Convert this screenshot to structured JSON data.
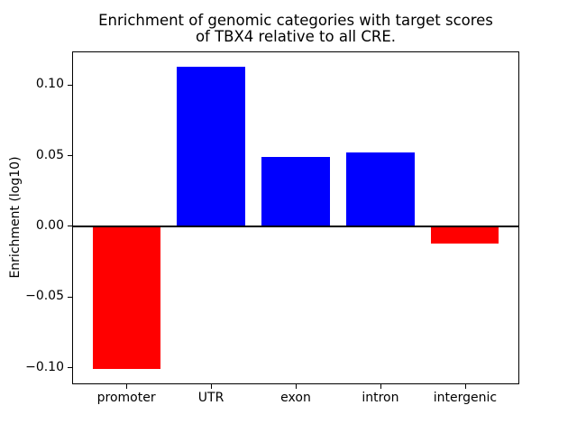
{
  "chart_data": {
    "type": "bar",
    "title": "Enrichment of genomic categories with target scores\nof TBX4 relative to all CRE.",
    "ylabel": "Enrichment (log10)",
    "xlabel": "",
    "categories": [
      "promoter",
      "UTR",
      "exon",
      "intron",
      "intergenic"
    ],
    "values": [
      -0.101,
      0.113,
      0.049,
      0.052,
      -0.012
    ],
    "bar_colors": [
      "#ff0000",
      "#0000ff",
      "#0000ff",
      "#0000ff",
      "#ff0000"
    ],
    "positive_color": "#0000ff",
    "negative_color": "#ff0000",
    "yticks": [
      -0.1,
      -0.05,
      0.0,
      0.05,
      0.1
    ],
    "ytick_labels": [
      "−0.10",
      "−0.05",
      "0.00",
      "0.05",
      "0.10"
    ],
    "ylim": [
      -0.1117,
      0.1237
    ],
    "bar_width_fraction": 0.8,
    "zero_line": true,
    "grid": false,
    "legend": null,
    "background_color": "#ffffff",
    "axis_color": "#000000"
  }
}
